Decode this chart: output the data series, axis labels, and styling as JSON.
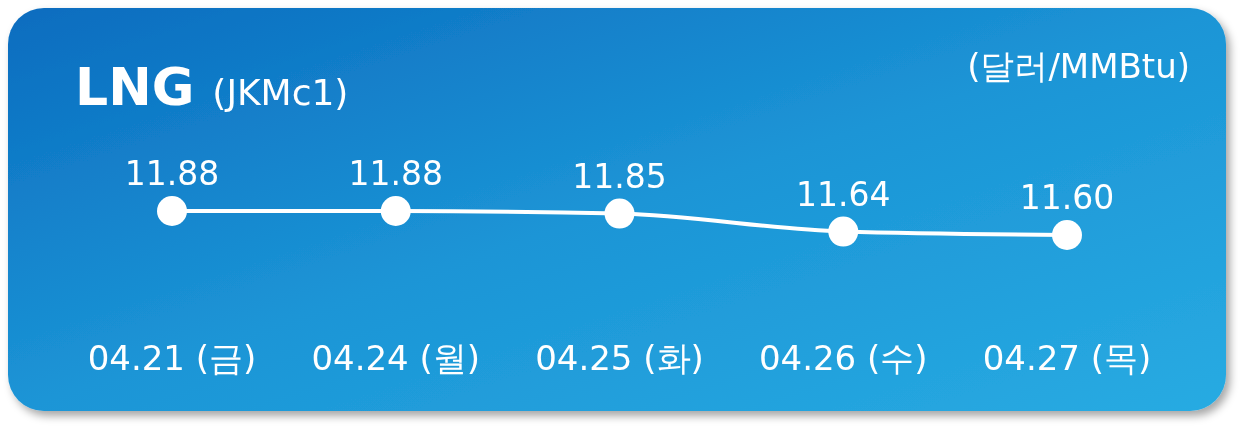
{
  "chart_data": {
    "type": "line",
    "title": "LNG",
    "subtitle": "(JKMc1)",
    "ylabel": "(달러/MMBtu)",
    "categories": [
      "04.21 (금)",
      "04.24 (월)",
      "04.25 (화)",
      "04.26 (수)",
      "04.27 (목)"
    ],
    "series": [
      {
        "color": "#ffffff",
        "values": [
          11.88,
          11.88,
          11.85,
          11.64,
          11.6
        ],
        "value_labels": [
          "11.88",
          "11.88",
          "11.85",
          "11.64",
          "11.60"
        ]
      }
    ],
    "marker": "circle",
    "line_style": "solid"
  }
}
